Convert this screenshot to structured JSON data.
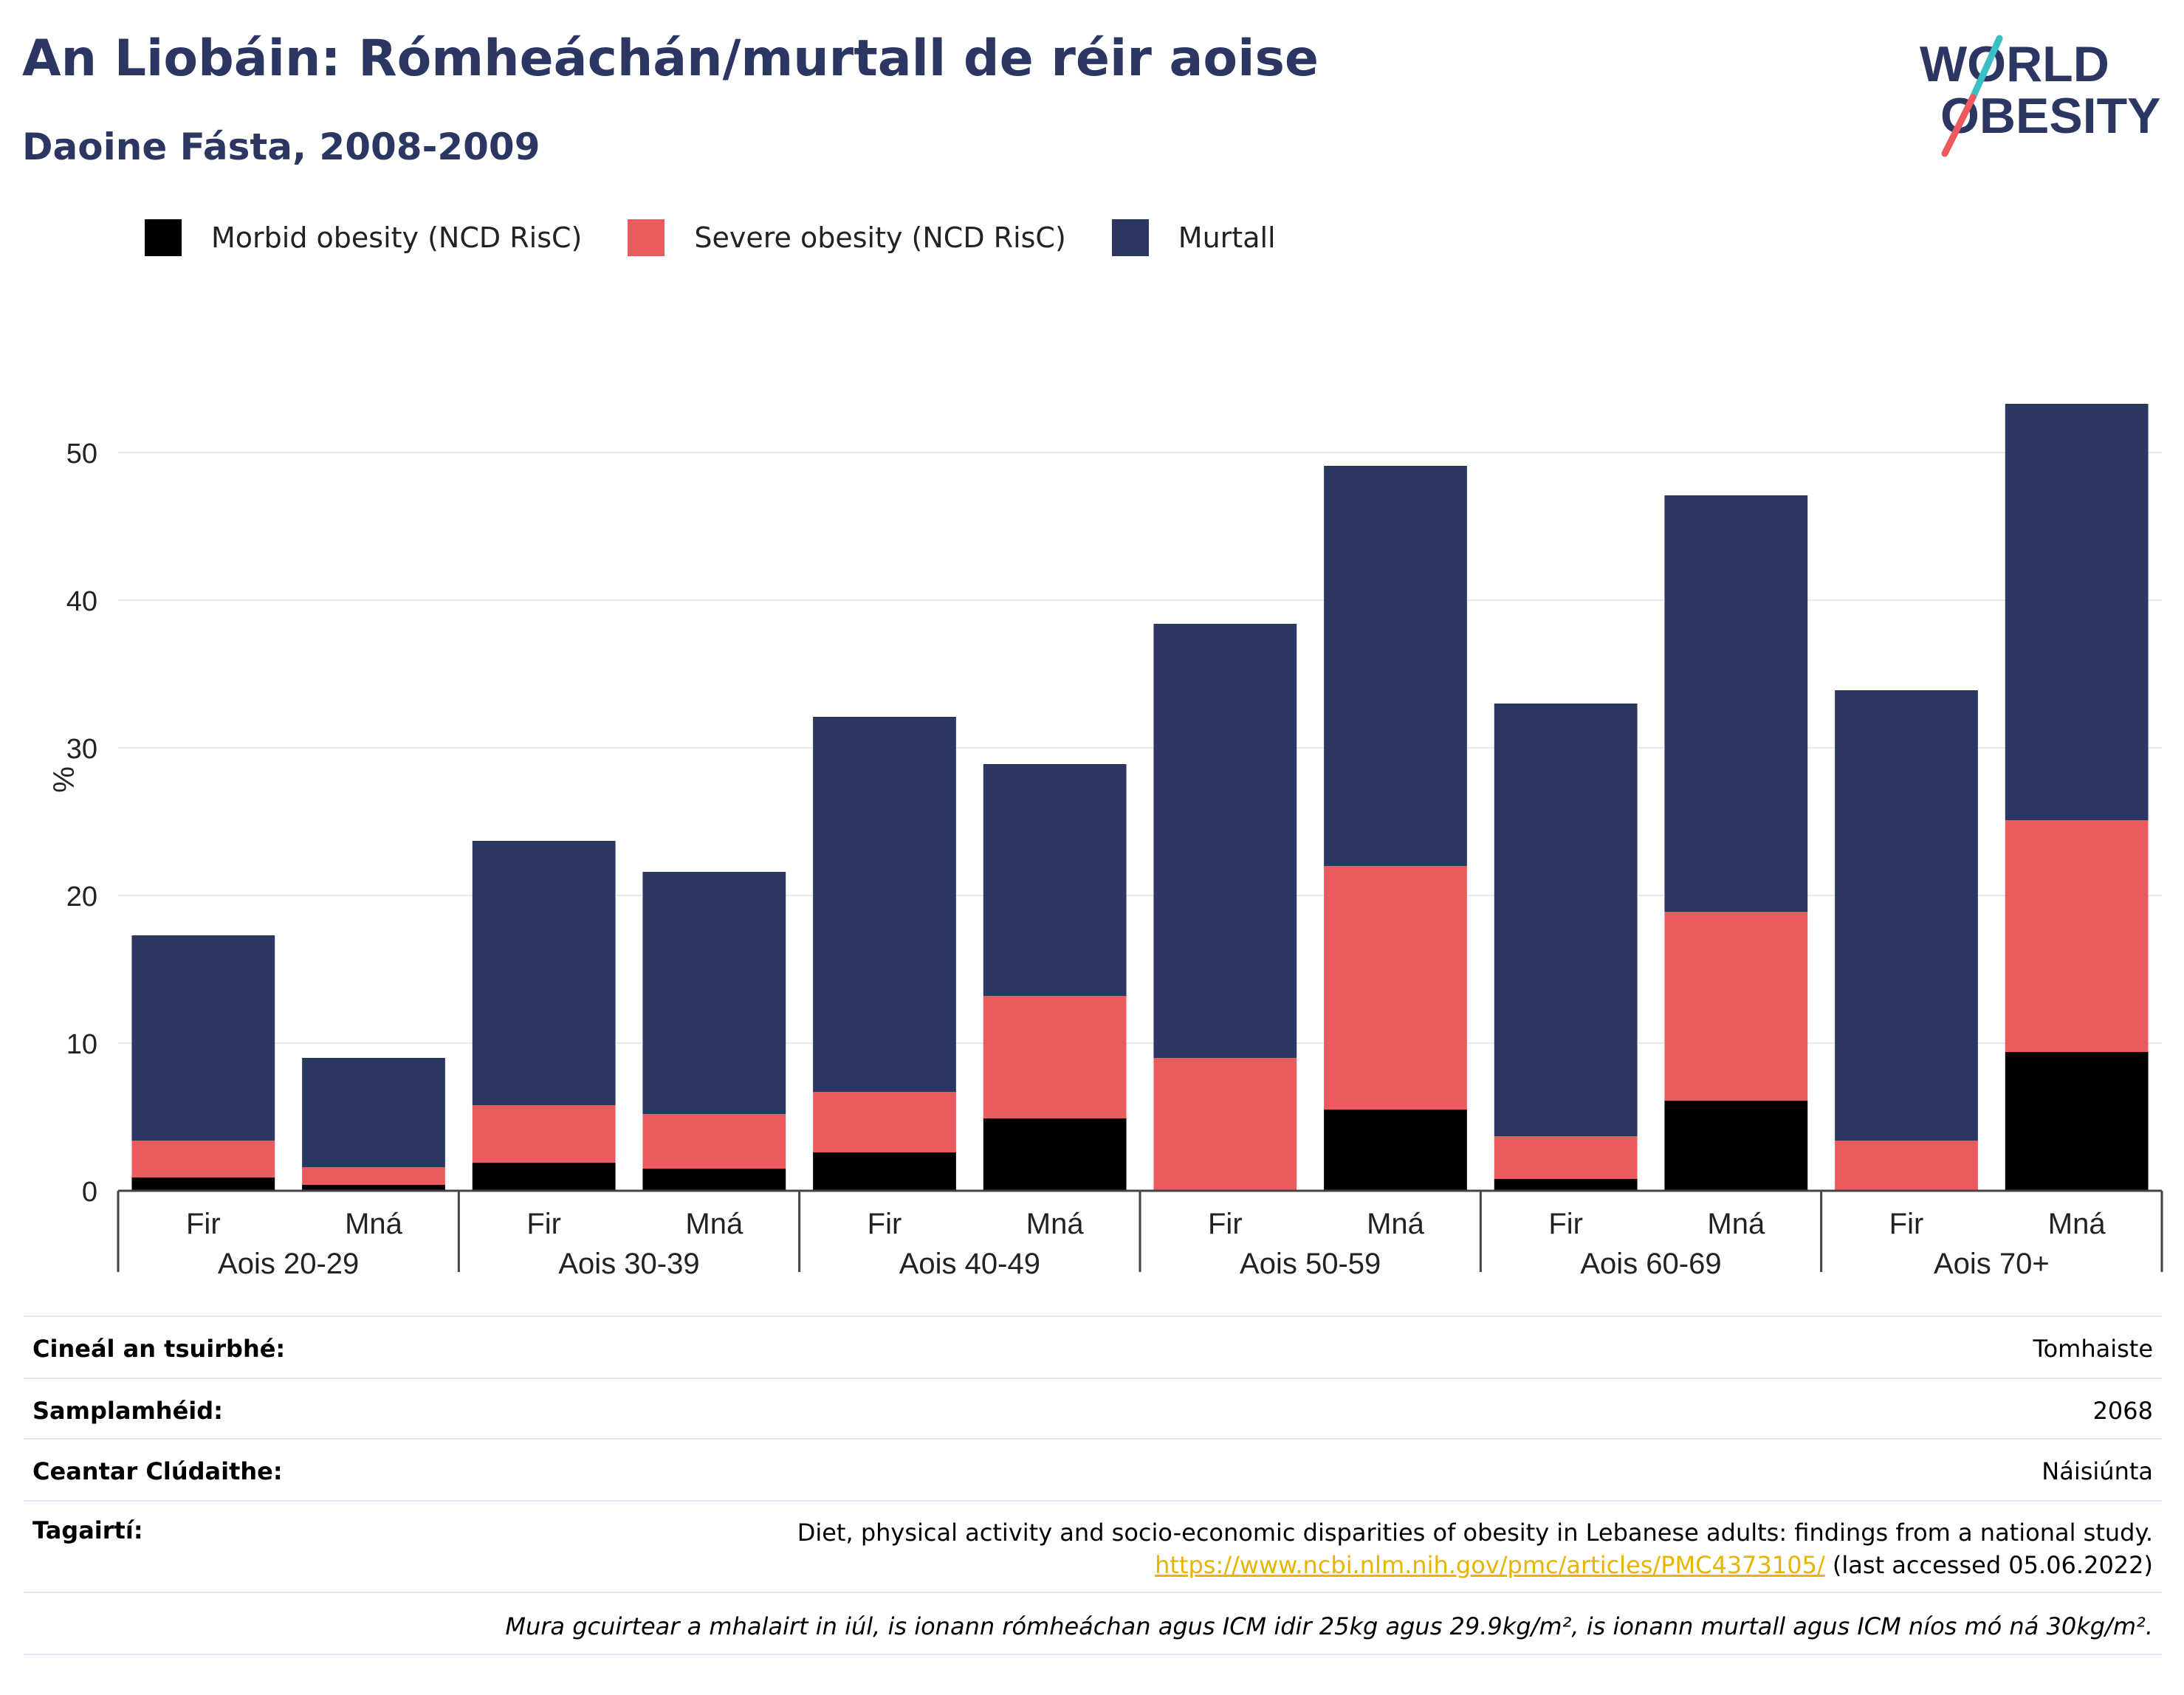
{
  "header": {
    "title": "An Liobáin: Rómheáchán/murtall de réir aoise",
    "subtitle": "Daoine Fásta, 2008-2009"
  },
  "logo": {
    "line1": "WORLD",
    "line2": "OBESITY"
  },
  "legend": [
    {
      "label": "Morbid obesity (NCD RisC)",
      "color": "#000000"
    },
    {
      "label": "Severe obesity (NCD RisC)",
      "color": "#eb5b5e"
    },
    {
      "label": "Murtall",
      "color": "#2b3663"
    }
  ],
  "chart_data": {
    "type": "bar",
    "stacked": true,
    "ylabel": "%",
    "ylim": [
      0,
      55
    ],
    "yticks": [
      0,
      10,
      20,
      30,
      40,
      50
    ],
    "grid": true,
    "legend_position": "top-left",
    "groups": [
      "Aois 20-29",
      "Aois 30-39",
      "Aois 40-49",
      "Aois 50-59",
      "Aois 60-69",
      "Aois 70+"
    ],
    "subcategories": [
      "Fir",
      "Mná"
    ],
    "series": [
      {
        "name": "Morbid obesity (NCD RisC)",
        "color": "#000000",
        "values": [
          0.9,
          0.4,
          1.9,
          1.5,
          2.6,
          4.9,
          0,
          5.5,
          0.8,
          6.1,
          0,
          9.4
        ]
      },
      {
        "name": "Severe obesity (NCD RisC)",
        "color": "#eb5b5e",
        "values": [
          2.5,
          1.2,
          3.9,
          3.7,
          4.1,
          8.3,
          9.0,
          16.5,
          2.9,
          12.8,
          3.4,
          15.7
        ]
      },
      {
        "name": "Murtall",
        "color": "#2b3663",
        "values": [
          13.9,
          7.4,
          17.9,
          16.4,
          25.4,
          15.7,
          29.4,
          27.1,
          29.3,
          28.2,
          30.5,
          28.2
        ]
      }
    ]
  },
  "info": {
    "survey_type_label": "Cineál an tsuirbhé:",
    "survey_type_value": "Tomhaiste",
    "sample_size_label": "Samplamhéid:",
    "sample_size_value": "2068",
    "area_label": "Ceantar Clúdaithe:",
    "area_value": "Náisiúnta",
    "refs_label": "Tagairtí:",
    "ref_text": "Diet, physical activity and socio-economic disparities of obesity in Lebanese adults: findings from a national study.",
    "ref_link": "https://www.ncbi.nlm.nih.gov/pmc/articles/PMC4373105/",
    "ref_accessed": "(last accessed 05.06.2022)",
    "footnote": "Mura gcuirtear a mhalairt in iúl, is ionann rómheáchan agus ICM idir 25kg agus 29.9kg/m², is ionann murtall agus ICM níos mó ná 30kg/m²."
  }
}
